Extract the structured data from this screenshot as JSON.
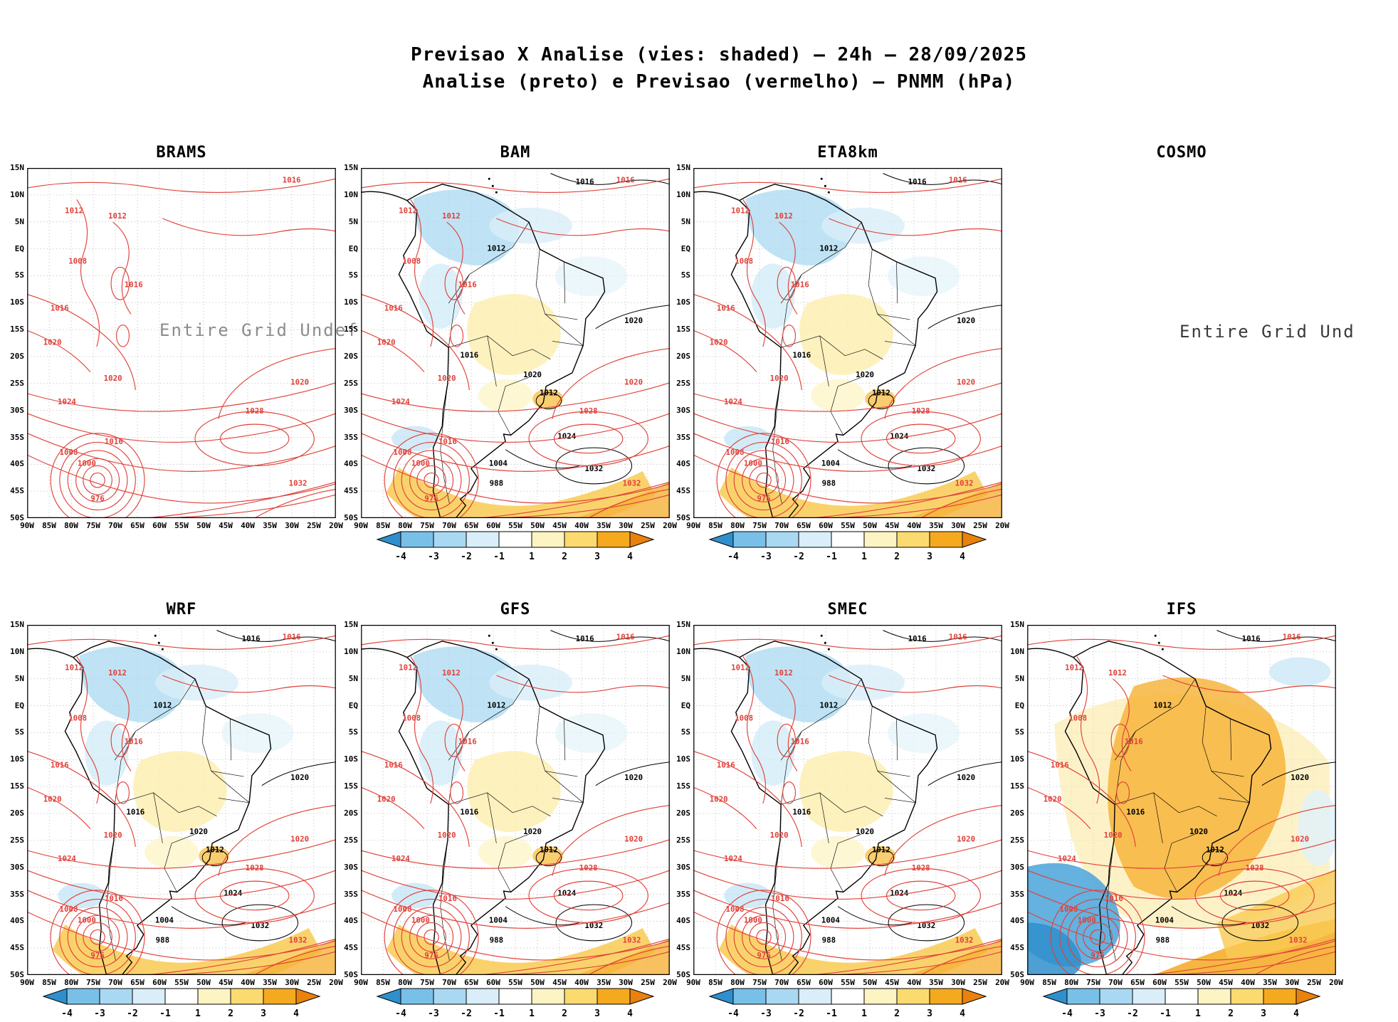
{
  "header": {
    "title_line1": "Previsao X Analise (vies: shaded) — 24h — 28/09/2025",
    "title_line2": "Analise (preto) e Previsao (vermelho) — PNMM (hPa)"
  },
  "axes": {
    "lat": [
      "15N",
      "10N",
      "5N",
      "EQ",
      "5S",
      "10S",
      "15S",
      "20S",
      "25S",
      "30S",
      "35S",
      "40S",
      "45S",
      "50S"
    ],
    "lon": [
      "90W",
      "85W",
      "80W",
      "75W",
      "70W",
      "65W",
      "60W",
      "55W",
      "50W",
      "45W",
      "40W",
      "35W",
      "30W",
      "25W",
      "20W"
    ]
  },
  "colorbar": {
    "ticks": [
      "-4",
      "-3",
      "-2",
      "-1",
      "1",
      "2",
      "3",
      "4"
    ],
    "segment_colors": [
      "#2f8fcc",
      "#79c0e8",
      "#a9d9f2",
      "#d9eef9",
      "#ffffff",
      "#fdf4c3",
      "#fbda6f",
      "#f5a91f",
      "#e8820c"
    ]
  },
  "colors": {
    "forecast_contour": "#e0413a",
    "analysis_contour": "#000000",
    "undef_text_gray": "#8c8c8c",
    "undef_text_dark": "#3a3a3a"
  },
  "panels": [
    {
      "id": "brams",
      "title": "BRAMS",
      "row": 0,
      "col": 0,
      "style": "red-only",
      "overlay": "Entire Grid Undef",
      "colorbar": false
    },
    {
      "id": "bam",
      "title": "BAM",
      "row": 0,
      "col": 1,
      "style": "bias",
      "colorbar": true
    },
    {
      "id": "eta8km",
      "title": "ETA8km",
      "row": 0,
      "col": 2,
      "style": "bias",
      "colorbar": true
    },
    {
      "id": "cosmo",
      "title": "COSMO",
      "row": 0,
      "col": 3,
      "style": "empty",
      "overlay": "Entire Grid Und",
      "colorbar": false
    },
    {
      "id": "wrf",
      "title": "WRF",
      "row": 1,
      "col": 0,
      "style": "bias",
      "colorbar": true
    },
    {
      "id": "gfs",
      "title": "GFS",
      "row": 1,
      "col": 1,
      "style": "bias",
      "colorbar": true
    },
    {
      "id": "smec",
      "title": "SMEC",
      "row": 1,
      "col": 2,
      "style": "bias",
      "colorbar": true
    },
    {
      "id": "ifs",
      "title": "IFS",
      "row": 1,
      "col": 3,
      "style": "bias-warm",
      "colorbar": true
    }
  ],
  "map_labels": {
    "red": [
      "1016",
      "1012",
      "1012",
      "1008",
      "1016",
      "1016",
      "1020",
      "1020",
      "1024",
      "1020",
      "1028",
      "1032",
      "1000",
      "1016",
      "976",
      "1008"
    ],
    "black": [
      "1016",
      "1012",
      "1020",
      "1012",
      "1032",
      "1024",
      "1016",
      "1020",
      "1004",
      "988"
    ]
  }
}
